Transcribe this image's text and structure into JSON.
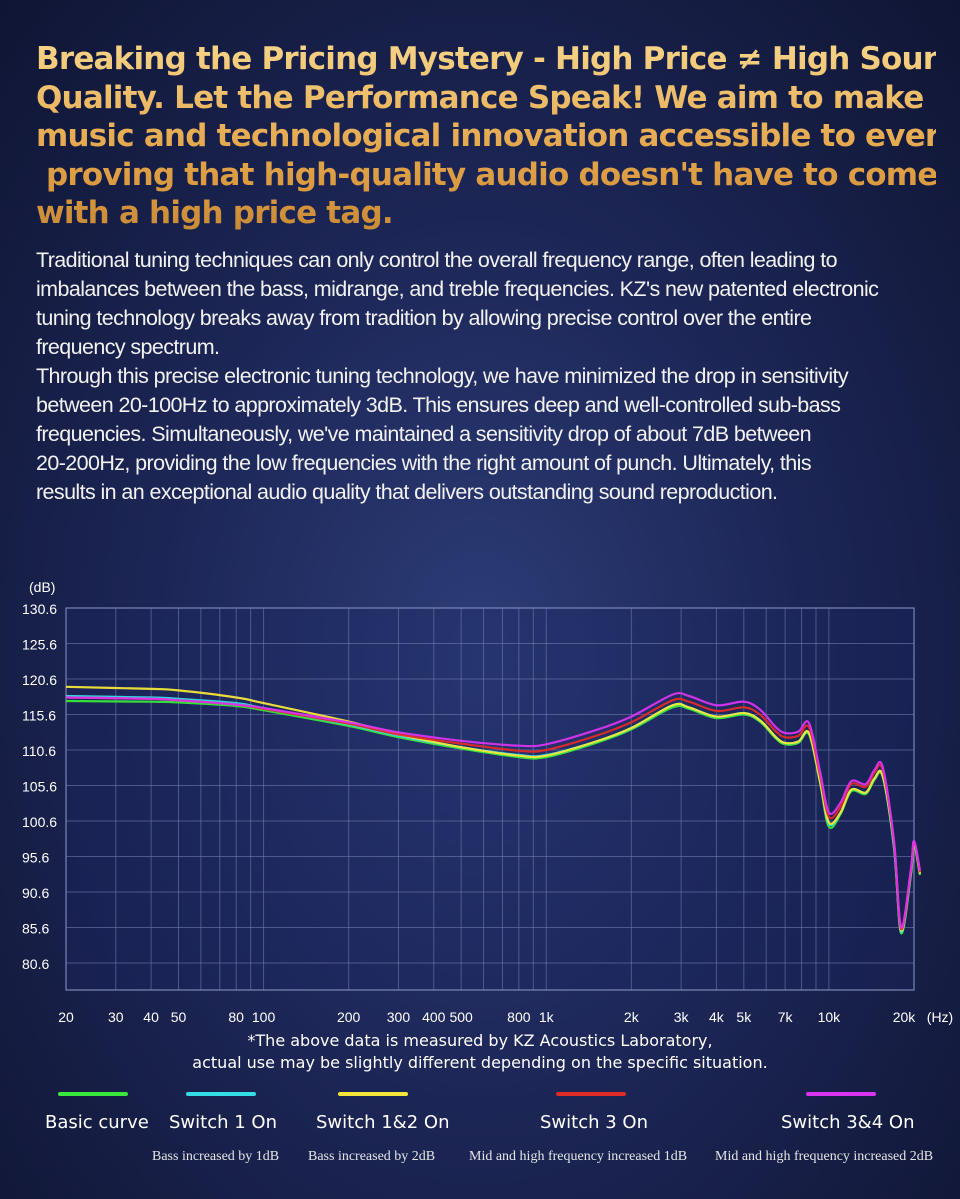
{
  "headline": {
    "lines": [
      "Breaking the Pricing Mystery - High Price ≠ High Sound",
      "Quality. Let the Performance Speak! We aim to make",
      "music and technological innovation accessible to everyone,",
      " proving that high-quality audio doesn't have to come",
      "with a high price tag."
    ]
  },
  "body": {
    "lines": [
      "Traditional tuning techniques can only control the overall frequency range, often leading to",
      "imbalances between the bass, midrange, and treble frequencies. KZ's new patented electronic",
      "tuning technology breaks away from tradition by allowing precise control over the entire",
      "frequency spectrum.",
      "Through this precise electronic tuning technology, we have minimized the drop in sensitivity",
      "between 20-100Hz to approximately 3dB. This ensures deep and well-controlled sub-bass",
      "frequencies. Simultaneously, we've maintained a sensitivity drop of about 7dB between",
      "20-200Hz, providing the low frequencies with the right amount of punch. Ultimately, this",
      "results in an exceptional audio quality that delivers outstanding sound reproduction."
    ]
  },
  "chart_data": {
    "type": "line",
    "ylabel": "(dB)",
    "xlabel": "(Hz)",
    "x_scale": "log",
    "xlim": [
      20,
      20000
    ],
    "x_ticks": [
      {
        "value": 20,
        "label": "20"
      },
      {
        "value": 30,
        "label": "30"
      },
      {
        "value": 40,
        "label": "40"
      },
      {
        "value": 50,
        "label": "50"
      },
      {
        "value": 80,
        "label": "80"
      },
      {
        "value": 100,
        "label": "100"
      },
      {
        "value": 200,
        "label": "200"
      },
      {
        "value": 300,
        "label": "300"
      },
      {
        "value": 400,
        "label": "400"
      },
      {
        "value": 500,
        "label": "500"
      },
      {
        "value": 800,
        "label": "800"
      },
      {
        "value": 1000,
        "label": "1k"
      },
      {
        "value": 2000,
        "label": "2k"
      },
      {
        "value": 3000,
        "label": "3k"
      },
      {
        "value": 4000,
        "label": "4k"
      },
      {
        "value": 5000,
        "label": "5k"
      },
      {
        "value": 7000,
        "label": "7k"
      },
      {
        "value": 10000,
        "label": "10k"
      },
      {
        "value": 20000,
        "label": "20k"
      }
    ],
    "y_ticks": [
      {
        "value": 130.6,
        "label": "130.6"
      },
      {
        "value": 125.6,
        "label": "125.6"
      },
      {
        "value": 120.6,
        "label": "120.6"
      },
      {
        "value": 115.6,
        "label": "115.6"
      },
      {
        "value": 110.6,
        "label": "110.6"
      },
      {
        "value": 105.6,
        "label": "105.6"
      },
      {
        "value": 100.6,
        "label": "100.6"
      },
      {
        "value": 95.6,
        "label": "95.6"
      },
      {
        "value": 90.6,
        "label": "90.6"
      },
      {
        "value": 85.6,
        "label": "85.6"
      },
      {
        "value": 80.6,
        "label": "80.6"
      }
    ],
    "ylim_top": 130.6,
    "grid": true,
    "series": [
      {
        "name": "Basic curve",
        "color": "#39e83a",
        "points": [
          [
            20,
            117.5
          ],
          [
            40,
            117.4
          ],
          [
            50,
            117.3
          ],
          [
            80,
            116.8
          ],
          [
            100,
            116.2
          ],
          [
            200,
            114.0
          ],
          [
            300,
            112.4
          ],
          [
            500,
            110.8
          ],
          [
            800,
            109.6
          ],
          [
            1000,
            109.6
          ],
          [
            1500,
            111.6
          ],
          [
            2000,
            113.5
          ],
          [
            2800,
            116.6
          ],
          [
            3200,
            116.4
          ],
          [
            4000,
            115.1
          ],
          [
            5000,
            115.6
          ],
          [
            5700,
            114.6
          ],
          [
            6500,
            112.2
          ],
          [
            7000,
            111.4
          ],
          [
            7800,
            111.6
          ],
          [
            8500,
            112.8
          ],
          [
            9300,
            106.0
          ],
          [
            10000,
            99.8
          ],
          [
            11000,
            101.6
          ],
          [
            12000,
            104.8
          ],
          [
            13500,
            104.4
          ],
          [
            14500,
            106.4
          ],
          [
            15500,
            106.8
          ],
          [
            17000,
            96.8
          ],
          [
            18000,
            84.8
          ],
          [
            19500,
            93.0
          ],
          [
            20000,
            97.0
          ],
          [
            21000,
            93.0
          ]
        ]
      },
      {
        "name": "Switch 1 On",
        "color": "#33dde6",
        "points": [
          [
            20,
            118.2
          ],
          [
            40,
            118.0
          ],
          [
            50,
            117.8
          ],
          [
            80,
            117.2
          ],
          [
            100,
            116.5
          ],
          [
            200,
            114.2
          ],
          [
            300,
            112.6
          ],
          [
            500,
            111.0
          ],
          [
            800,
            109.9
          ],
          [
            1000,
            109.9
          ],
          [
            1500,
            111.8
          ],
          [
            2000,
            113.7
          ],
          [
            2800,
            116.9
          ],
          [
            3200,
            116.6
          ],
          [
            4000,
            115.3
          ],
          [
            5000,
            115.8
          ],
          [
            5700,
            114.8
          ],
          [
            6500,
            112.4
          ],
          [
            7000,
            111.6
          ],
          [
            7800,
            111.8
          ],
          [
            8500,
            113.0
          ],
          [
            9300,
            106.2
          ],
          [
            10000,
            100.2
          ],
          [
            11000,
            101.8
          ],
          [
            12000,
            105.0
          ],
          [
            13500,
            104.6
          ],
          [
            14500,
            106.6
          ],
          [
            15500,
            107.0
          ],
          [
            17000,
            97.0
          ],
          [
            18000,
            85.0
          ],
          [
            19500,
            93.2
          ],
          [
            20000,
            97.2
          ],
          [
            21000,
            93.2
          ]
        ]
      },
      {
        "name": "Switch 1&2 On",
        "color": "#f3e639",
        "points": [
          [
            20,
            119.5
          ],
          [
            40,
            119.2
          ],
          [
            50,
            119.0
          ],
          [
            80,
            118.0
          ],
          [
            100,
            117.2
          ],
          [
            200,
            114.6
          ],
          [
            300,
            112.8
          ],
          [
            500,
            111.0
          ],
          [
            800,
            109.8
          ],
          [
            1000,
            109.8
          ],
          [
            1500,
            111.8
          ],
          [
            2000,
            113.7
          ],
          [
            2800,
            116.9
          ],
          [
            3200,
            116.6
          ],
          [
            4000,
            115.3
          ],
          [
            5000,
            115.8
          ],
          [
            5700,
            114.8
          ],
          [
            6500,
            112.4
          ],
          [
            7000,
            111.6
          ],
          [
            7800,
            111.8
          ],
          [
            8500,
            113.0
          ],
          [
            9300,
            106.2
          ],
          [
            10000,
            100.4
          ],
          [
            11000,
            101.8
          ],
          [
            12000,
            105.0
          ],
          [
            13500,
            104.6
          ],
          [
            14500,
            106.6
          ],
          [
            15500,
            107.0
          ],
          [
            17000,
            97.4
          ],
          [
            18000,
            85.2
          ],
          [
            19500,
            93.4
          ],
          [
            20000,
            97.4
          ],
          [
            21000,
            93.2
          ]
        ]
      },
      {
        "name": "Switch 3 On",
        "color": "#e02a28",
        "points": [
          [
            20,
            118.0
          ],
          [
            40,
            117.8
          ],
          [
            50,
            117.6
          ],
          [
            80,
            117.0
          ],
          [
            100,
            116.4
          ],
          [
            200,
            114.3
          ],
          [
            300,
            112.8
          ],
          [
            500,
            111.5
          ],
          [
            800,
            110.5
          ],
          [
            1000,
            110.6
          ],
          [
            1500,
            112.6
          ],
          [
            2000,
            114.5
          ],
          [
            2800,
            117.6
          ],
          [
            3200,
            117.4
          ],
          [
            4000,
            116.1
          ],
          [
            5000,
            116.6
          ],
          [
            5700,
            115.6
          ],
          [
            6500,
            113.2
          ],
          [
            7000,
            112.4
          ],
          [
            7800,
            112.6
          ],
          [
            8500,
            113.8
          ],
          [
            9300,
            107.0
          ],
          [
            10000,
            101.2
          ],
          [
            11000,
            102.6
          ],
          [
            12000,
            105.8
          ],
          [
            13500,
            105.4
          ],
          [
            14500,
            107.4
          ],
          [
            15500,
            107.8
          ],
          [
            17000,
            97.6
          ],
          [
            18000,
            85.4
          ],
          [
            19500,
            93.6
          ],
          [
            20000,
            97.6
          ],
          [
            21000,
            93.4
          ]
        ]
      },
      {
        "name": "Switch 3&4 On",
        "color": "#d934f0",
        "points": [
          [
            20,
            118.0
          ],
          [
            40,
            117.8
          ],
          [
            50,
            117.6
          ],
          [
            80,
            117.0
          ],
          [
            100,
            116.5
          ],
          [
            200,
            114.5
          ],
          [
            300,
            113.1
          ],
          [
            500,
            111.9
          ],
          [
            800,
            111.2
          ],
          [
            1000,
            111.4
          ],
          [
            1500,
            113.4
          ],
          [
            2000,
            115.3
          ],
          [
            2800,
            118.4
          ],
          [
            3200,
            118.2
          ],
          [
            4000,
            116.9
          ],
          [
            5000,
            117.4
          ],
          [
            5700,
            116.3
          ],
          [
            6500,
            113.8
          ],
          [
            7000,
            113.0
          ],
          [
            7800,
            113.2
          ],
          [
            8500,
            114.4
          ],
          [
            9300,
            107.6
          ],
          [
            10000,
            101.8
          ],
          [
            11000,
            103.2
          ],
          [
            12000,
            106.2
          ],
          [
            13500,
            105.8
          ],
          [
            14500,
            107.8
          ],
          [
            15500,
            108.2
          ],
          [
            17000,
            97.8
          ],
          [
            18000,
            85.6
          ],
          [
            19500,
            93.8
          ],
          [
            20000,
            97.8
          ],
          [
            21000,
            93.6
          ]
        ]
      }
    ]
  },
  "footnote": {
    "line1": "*The above data is measured by KZ Acoustics Laboratory,",
    "line2": "actual use may be slightly different depending on the specific situation."
  },
  "legend": [
    {
      "label": "Basic curve",
      "desc": "",
      "color": "#39e83a"
    },
    {
      "label": "Switch 1 On",
      "desc": "Bass increased by 1dB",
      "color": "#33dde6"
    },
    {
      "label": "Switch 1&2 On",
      "desc": "Bass increased by 2dB",
      "color": "#f3e639"
    },
    {
      "label": "Switch 3 On",
      "desc": "Mid and high frequency increased 1dB",
      "color": "#e02a28"
    },
    {
      "label": "Switch 3&4 On",
      "desc": "Mid and high frequency increased 2dB",
      "color": "#d934f0"
    }
  ]
}
